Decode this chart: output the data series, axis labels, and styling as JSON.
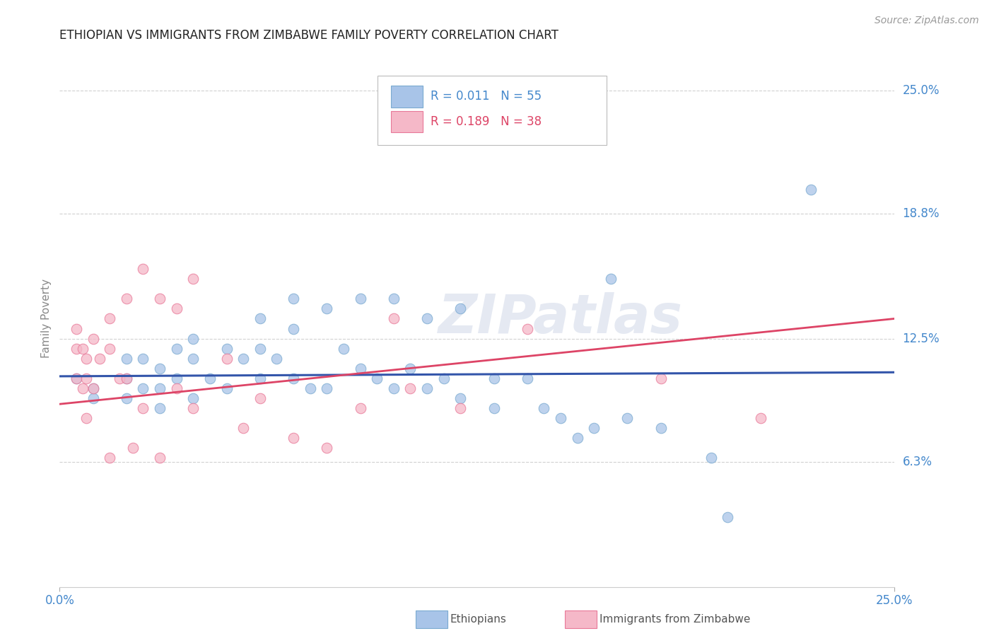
{
  "title": "ETHIOPIAN VS IMMIGRANTS FROM ZIMBABWE FAMILY POVERTY CORRELATION CHART",
  "source": "Source: ZipAtlas.com",
  "ylabel": "Family Poverty",
  "ytick_labels": [
    "25.0%",
    "18.8%",
    "12.5%",
    "6.3%"
  ],
  "ytick_values": [
    0.25,
    0.188,
    0.125,
    0.063
  ],
  "xlim": [
    0.0,
    0.25
  ],
  "ylim": [
    0.0,
    0.27
  ],
  "legend_label1": "Ethiopians",
  "legend_label2": "Immigrants from Zimbabwe",
  "watermark": "ZIPatlas",
  "blue_scatter_x": [
    0.005,
    0.01,
    0.01,
    0.02,
    0.02,
    0.02,
    0.025,
    0.025,
    0.03,
    0.03,
    0.03,
    0.035,
    0.035,
    0.04,
    0.04,
    0.04,
    0.045,
    0.05,
    0.05,
    0.055,
    0.06,
    0.06,
    0.06,
    0.065,
    0.07,
    0.07,
    0.07,
    0.075,
    0.08,
    0.08,
    0.085,
    0.09,
    0.09,
    0.095,
    0.1,
    0.1,
    0.105,
    0.11,
    0.11,
    0.115,
    0.12,
    0.12,
    0.13,
    0.13,
    0.14,
    0.145,
    0.15,
    0.155,
    0.16,
    0.165,
    0.17,
    0.18,
    0.195,
    0.2,
    0.225
  ],
  "blue_scatter_y": [
    0.105,
    0.1,
    0.095,
    0.115,
    0.105,
    0.095,
    0.115,
    0.1,
    0.11,
    0.1,
    0.09,
    0.12,
    0.105,
    0.125,
    0.115,
    0.095,
    0.105,
    0.12,
    0.1,
    0.115,
    0.135,
    0.12,
    0.105,
    0.115,
    0.145,
    0.13,
    0.105,
    0.1,
    0.14,
    0.1,
    0.12,
    0.145,
    0.11,
    0.105,
    0.145,
    0.1,
    0.11,
    0.135,
    0.1,
    0.105,
    0.14,
    0.095,
    0.105,
    0.09,
    0.105,
    0.09,
    0.085,
    0.075,
    0.08,
    0.155,
    0.085,
    0.08,
    0.065,
    0.035,
    0.2
  ],
  "pink_scatter_x": [
    0.005,
    0.005,
    0.005,
    0.007,
    0.007,
    0.008,
    0.008,
    0.008,
    0.01,
    0.01,
    0.012,
    0.015,
    0.015,
    0.015,
    0.018,
    0.02,
    0.02,
    0.022,
    0.025,
    0.025,
    0.03,
    0.03,
    0.035,
    0.035,
    0.04,
    0.04,
    0.05,
    0.055,
    0.06,
    0.07,
    0.08,
    0.09,
    0.1,
    0.105,
    0.12,
    0.14,
    0.18,
    0.21
  ],
  "pink_scatter_y": [
    0.13,
    0.12,
    0.105,
    0.12,
    0.1,
    0.115,
    0.105,
    0.085,
    0.125,
    0.1,
    0.115,
    0.135,
    0.12,
    0.065,
    0.105,
    0.145,
    0.105,
    0.07,
    0.16,
    0.09,
    0.145,
    0.065,
    0.14,
    0.1,
    0.155,
    0.09,
    0.115,
    0.08,
    0.095,
    0.075,
    0.07,
    0.09,
    0.135,
    0.1,
    0.09,
    0.13,
    0.105,
    0.085
  ],
  "blue_line_x": [
    0.0,
    0.25
  ],
  "blue_line_y": [
    0.106,
    0.108
  ],
  "pink_line_x": [
    0.0,
    0.25
  ],
  "pink_line_y": [
    0.092,
    0.135
  ],
  "blue_scatter_color": "#a8c4e8",
  "blue_edge_color": "#7aaad0",
  "pink_scatter_color": "#f5b8c8",
  "pink_edge_color": "#e87898",
  "blue_line_color": "#3355aa",
  "pink_line_color": "#dd4466",
  "grid_color": "#cccccc",
  "background_color": "#ffffff",
  "title_color": "#222222",
  "source_color": "#999999",
  "axis_label_color": "#4488cc",
  "ylabel_color": "#888888"
}
